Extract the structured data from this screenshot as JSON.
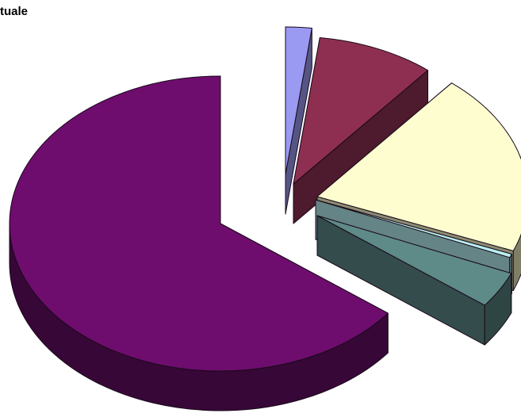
{
  "chart_data": {
    "type": "pie",
    "title": "tuale",
    "slices": [
      {
        "value": 2,
        "color": "#9A9AF2"
      },
      {
        "value": 9,
        "color": "#8E2F52"
      },
      {
        "value": 20,
        "color": "#FDFDD0"
      },
      {
        "value": 0.4,
        "color": "#B8F0F2"
      },
      {
        "value": 4,
        "color": "#5E8A88"
      },
      {
        "value": 64.6,
        "color": "#6E0D6E"
      }
    ],
    "exploded": [
      true,
      true,
      true,
      true,
      true,
      true
    ],
    "style": "3d"
  }
}
